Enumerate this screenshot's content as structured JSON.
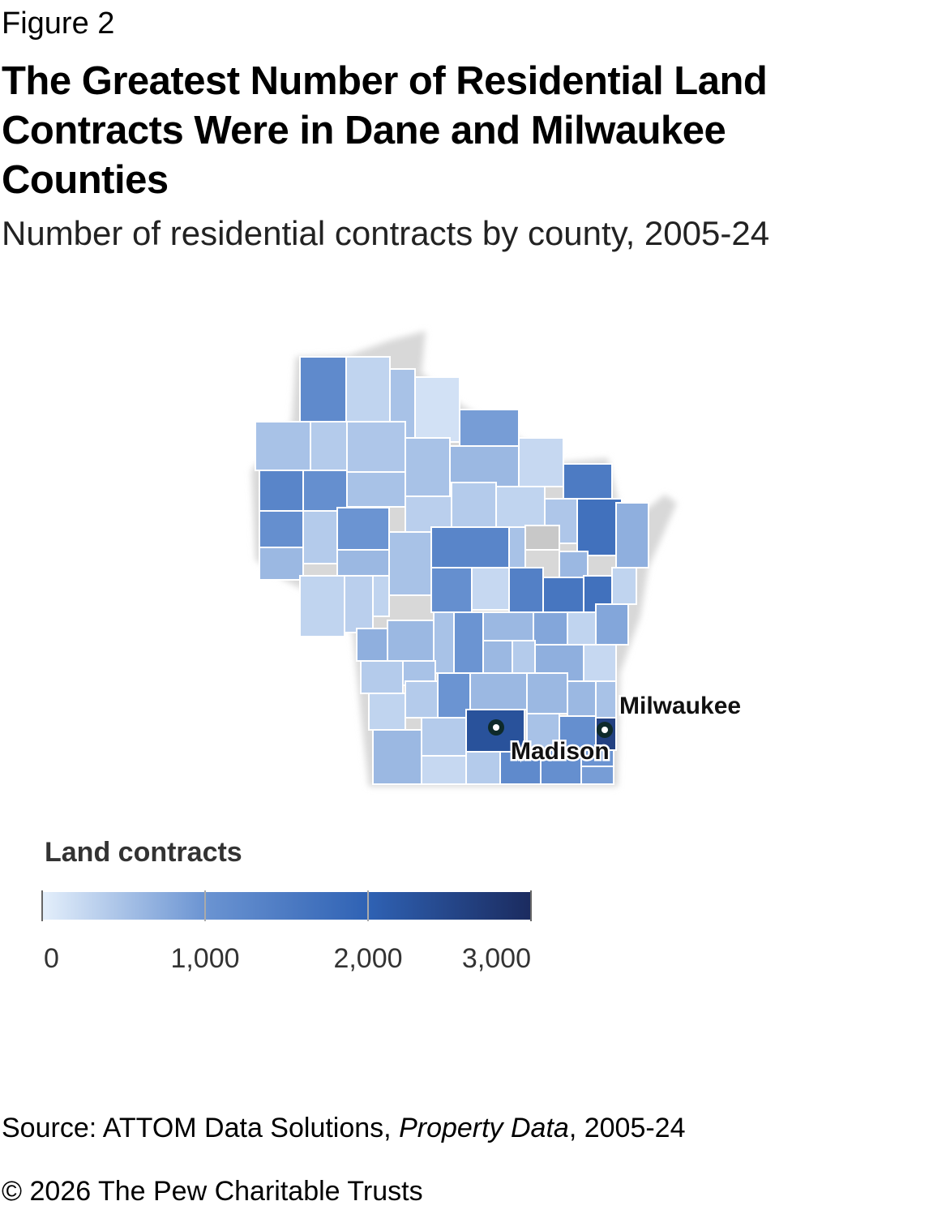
{
  "figure_label": "Figure 2",
  "title": "The Greatest Number of Residential Land Contracts Were in Dane and Milwaukee Counties",
  "subtitle": "Number of residential contracts by county, 2005-24",
  "chart_data": {
    "type": "choropleth",
    "county_values": [
      1200,
      300,
      500,
      150,
      900,
      250,
      1500,
      500,
      400,
      450,
      500,
      600,
      1300,
      1100,
      500,
      350,
      400,
      300,
      450,
      1700,
      1100,
      400,
      1000,
      500,
      1300,
      500,
      null,
      600,
      600,
      600,
      700,
      300,
      350,
      300,
      1100,
      250,
      1400,
      1600,
      1700,
      300,
      700,
      600,
      500,
      1000,
      600,
      800,
      300,
      800,
      400,
      500,
      600,
      400,
      700,
      250,
      300,
      400,
      1000,
      600,
      600,
      600,
      500,
      600,
      400,
      2300,
      500,
      1100,
      2600,
      250,
      400,
      1200,
      1100,
      1000,
      900
    ],
    "missing_color": "#c8c8c8",
    "cities": [
      {
        "name": "Madison"
      },
      {
        "name": "Milwaukee"
      }
    ],
    "legend_title": "Land contracts",
    "color_lim": [
      0,
      3000
    ],
    "color_ticks": [
      {
        "value": 0,
        "label": "0"
      },
      {
        "value": 1000,
        "label": "1,000"
      },
      {
        "value": 2000,
        "label": "2,000"
      },
      {
        "value": 3000,
        "label": "3,000"
      }
    ],
    "color_stops": [
      {
        "value": 0,
        "color": "#e4effb"
      },
      {
        "value": 1000,
        "color": "#6b94d2"
      },
      {
        "value": 2000,
        "color": "#2f62b4"
      },
      {
        "value": 3000,
        "color": "#1b2b5f"
      }
    ]
  },
  "source": {
    "prefix": "Source: ATTOM Data Solutions, ",
    "italic": "Property Data",
    "suffix": ", 2005-24"
  },
  "copyright": "© 2026 The Pew Charitable Trusts"
}
